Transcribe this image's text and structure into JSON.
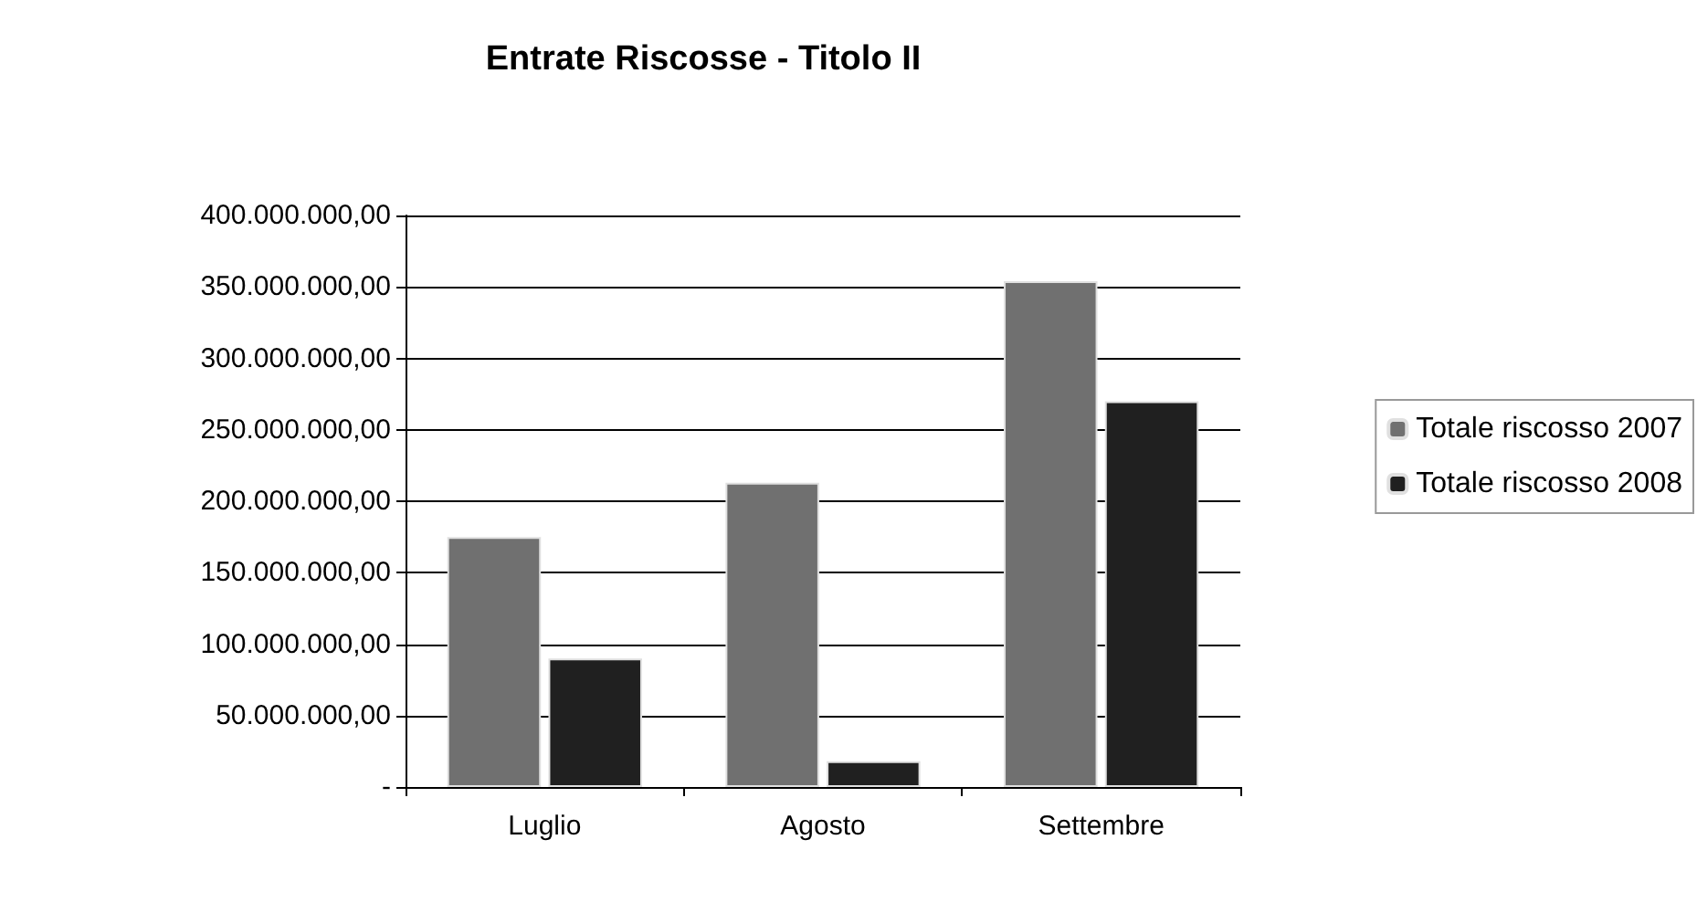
{
  "chart_data": {
    "type": "bar",
    "title": "Entrate Riscosse - Titolo II",
    "categories": [
      "Luglio",
      "Agosto",
      "Settembre"
    ],
    "series": [
      {
        "name": "Totale riscosso 2007",
        "color": "#707070",
        "values": [
          175000000,
          213000000,
          354000000
        ]
      },
      {
        "name": "Totale riscosso 2008",
        "color": "#202020",
        "values": [
          90000000,
          18000000,
          270000000
        ]
      }
    ],
    "ylim": [
      0,
      400000000
    ],
    "yticks": [
      {
        "value": 0,
        "label": "-"
      },
      {
        "value": 50000000,
        "label": "50.000.000,00"
      },
      {
        "value": 100000000,
        "label": "100.000.000,00"
      },
      {
        "value": 150000000,
        "label": "150.000.000,00"
      },
      {
        "value": 200000000,
        "label": "200.000.000,00"
      },
      {
        "value": 250000000,
        "label": "250.000.000,00"
      },
      {
        "value": 300000000,
        "label": "300.000.000,00"
      },
      {
        "value": 350000000,
        "label": "350.000.000,00"
      },
      {
        "value": 400000000,
        "label": "400.000.000,00"
      }
    ],
    "grid": "y",
    "legend": "right"
  }
}
